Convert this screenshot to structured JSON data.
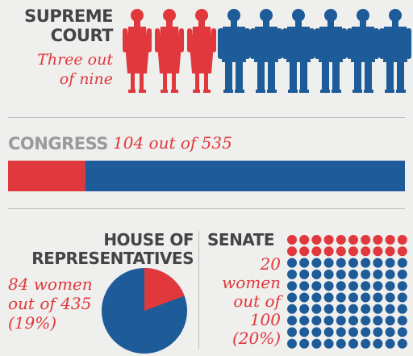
{
  "supreme_court": {
    "heading": "SUPREME COURT",
    "caption": "Three out of nine"
  },
  "congress": {
    "heading": "CONGRESS",
    "caption": "104 out of 535"
  },
  "house": {
    "heading": "HOUSE OF REPRESENTATIVES",
    "caption": "84 women out of 435 (19%)"
  },
  "senate": {
    "heading": "SENATE",
    "caption": "20 women out of 100 (20%)"
  },
  "colors": {
    "women": "#e0383c",
    "men": "#1e5b99"
  },
  "chart_data": [
    {
      "type": "pictogram",
      "title": "SUPREME COURT",
      "categories": [
        "women",
        "men"
      ],
      "values": [
        3,
        6
      ],
      "total": 9
    },
    {
      "type": "bar",
      "title": "CONGRESS",
      "categories": [
        "women",
        "men"
      ],
      "values": [
        104,
        431
      ],
      "total": 535
    },
    {
      "type": "pie",
      "title": "HOUSE OF REPRESENTATIVES",
      "categories": [
        "women",
        "men"
      ],
      "values": [
        84,
        351
      ],
      "total": 435
    },
    {
      "type": "pictogram",
      "title": "SENATE",
      "categories": [
        "women",
        "men"
      ],
      "values": [
        20,
        80
      ],
      "total": 100
    }
  ]
}
